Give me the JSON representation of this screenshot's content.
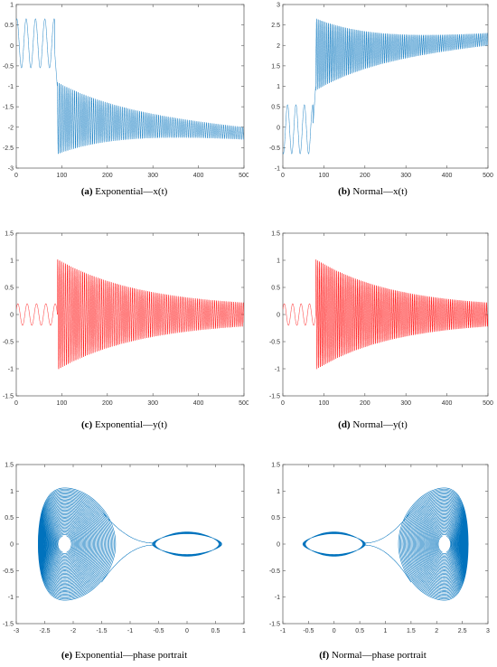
{
  "colors": {
    "x_series": "#0072bd",
    "y_series": "#ff0000"
  },
  "chart_data": [
    {
      "id": "a",
      "type": "line",
      "caption_label": "(a)",
      "caption_text": "Exponential—x(t)",
      "xlim": [
        0,
        500
      ],
      "ylim": [
        -3,
        1
      ],
      "xticks": [
        0,
        100,
        200,
        300,
        400,
        500
      ],
      "yticks": [
        -3,
        -2.5,
        -2,
        -1.5,
        -1,
        -0.5,
        0,
        0.5,
        1
      ],
      "color": "#0072bd",
      "signal": "x",
      "t_jump": 90,
      "sign": -1,
      "series": [
        {
          "x_range": [
            0,
            500
          ],
          "pre_jump_range": [
            -0.55,
            0.65
          ],
          "post_jump_envelope": {
            "start": [
              -2.55,
              -1.0
            ],
            "end": [
              -2.25,
              -2.05
            ]
          }
        }
      ]
    },
    {
      "id": "b",
      "type": "line",
      "caption_label": "(b)",
      "caption_text": "Normal—x(t)",
      "xlim": [
        0,
        500
      ],
      "ylim": [
        -1,
        3
      ],
      "xticks": [
        0,
        100,
        200,
        300,
        400,
        500
      ],
      "yticks": [
        -1,
        -0.5,
        0,
        0.5,
        1,
        1.5,
        2,
        2.5,
        3
      ],
      "color": "#0072bd",
      "signal": "x",
      "t_jump": 80,
      "sign": 1,
      "series": [
        {
          "x_range": [
            0,
            500
          ],
          "pre_jump_range": [
            -0.65,
            0.55
          ],
          "post_jump_envelope": {
            "start": [
              1.0,
              2.55
            ],
            "end": [
              2.05,
              2.25
            ]
          }
        }
      ]
    },
    {
      "id": "c",
      "type": "line",
      "caption_label": "(c)",
      "caption_text": "Exponential—y(t)",
      "xlim": [
        0,
        500
      ],
      "ylim": [
        -1.5,
        1.5
      ],
      "xticks": [
        0,
        100,
        200,
        300,
        400,
        500
      ],
      "yticks": [
        -1.5,
        -1,
        -0.5,
        0,
        0.5,
        1,
        1.5
      ],
      "color": "#ff0000",
      "signal": "y",
      "t_jump": 90,
      "sign": -1,
      "series": [
        {
          "x_range": [
            0,
            500
          ],
          "pre_jump_range": [
            -0.2,
            0.2
          ],
          "post_jump_envelope": {
            "start": [
              -1.1,
              1.08
            ],
            "end": [
              -0.2,
              0.2
            ]
          }
        }
      ]
    },
    {
      "id": "d",
      "type": "line",
      "caption_label": "(d)",
      "caption_text": "Normal—y(t)",
      "xlim": [
        0,
        500
      ],
      "ylim": [
        -1.5,
        1.5
      ],
      "xticks": [
        0,
        100,
        200,
        300,
        400,
        500
      ],
      "yticks": [
        -1.5,
        -1,
        -0.5,
        0,
        0.5,
        1,
        1.5
      ],
      "color": "#ff0000",
      "signal": "y",
      "t_jump": 80,
      "sign": 1,
      "series": [
        {
          "x_range": [
            0,
            500
          ],
          "pre_jump_range": [
            -0.2,
            0.2
          ],
          "post_jump_envelope": {
            "start": [
              -1.1,
              1.08
            ],
            "end": [
              -0.2,
              0.2
            ]
          }
        }
      ]
    },
    {
      "id": "e",
      "type": "line",
      "caption_label": "(e)",
      "caption_text": "Exponential—phase portrait",
      "xlim": [
        -3,
        1
      ],
      "ylim": [
        -1.5,
        1.5
      ],
      "xticks": [
        -3,
        -2.5,
        -2,
        -1.5,
        -1,
        -0.5,
        0,
        0.5,
        1
      ],
      "yticks": [
        -1.5,
        -1,
        -0.5,
        0,
        0.5,
        1,
        1.5
      ],
      "color": "#0072bd",
      "signal": "phase",
      "sign": -1,
      "series": [
        {
          "x_range": [
            -2.65,
            0.62
          ],
          "y_range": [
            -1.1,
            1.08
          ],
          "small_orbit_center": [
            0,
            0
          ],
          "large_orbit_center": [
            -2.15,
            0
          ]
        }
      ]
    },
    {
      "id": "f",
      "type": "line",
      "caption_label": "(f)",
      "caption_text": "Normal—phase portrait",
      "xlim": [
        -1,
        3
      ],
      "ylim": [
        -1.5,
        1.5
      ],
      "xticks": [
        -1,
        -0.5,
        0,
        0.5,
        1,
        1.5,
        2,
        2.5,
        3
      ],
      "yticks": [
        -1.5,
        -1,
        -0.5,
        0,
        0.5,
        1,
        1.5
      ],
      "color": "#0072bd",
      "signal": "phase",
      "sign": 1,
      "series": [
        {
          "x_range": [
            -0.62,
            2.65
          ],
          "y_range": [
            -1.1,
            1.08
          ],
          "small_orbit_center": [
            0,
            0
          ],
          "large_orbit_center": [
            2.15,
            0
          ]
        }
      ]
    }
  ]
}
